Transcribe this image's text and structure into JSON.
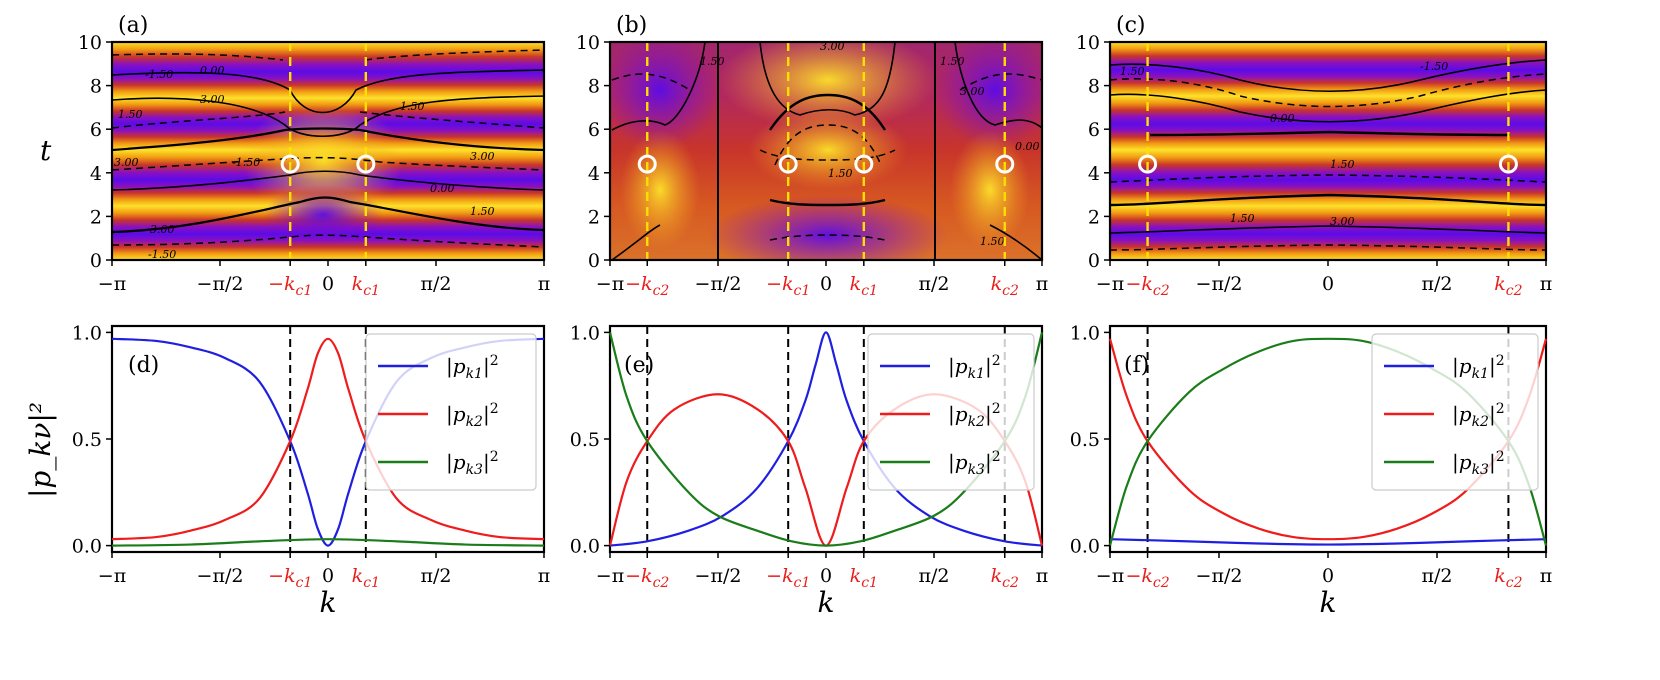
{
  "chart_data": {
    "type": "line",
    "panels_top": [
      {
        "label": "(a)",
        "type": "heatmap",
        "ylabel": "t",
        "xlim": [
          -3.1416,
          3.1416
        ],
        "ylim": [
          0,
          10
        ],
        "yticks": [
          "0",
          "2",
          "4",
          "6",
          "8",
          "10"
        ],
        "xtick_labels": [
          {
            "x": -3.1416,
            "text": "−π",
            "red": false
          },
          {
            "x": -1.5708,
            "text": "−π/2",
            "red": false
          },
          {
            "x": -0.55,
            "text": "−k_c1",
            "red": true
          },
          {
            "x": 0,
            "text": "0",
            "red": false
          },
          {
            "x": 0.55,
            "text": "k_c1",
            "red": true
          },
          {
            "x": 1.5708,
            "text": "π/2",
            "red": false
          },
          {
            "x": 3.1416,
            "text": "π",
            "red": false
          }
        ],
        "critical_k": [
          -0.55,
          0.55
        ],
        "critical_t": 4.4,
        "contour_labels": [
          "-1.50",
          "0.00",
          "1.50",
          "3.00"
        ]
      },
      {
        "label": "(b)",
        "type": "heatmap",
        "xlim": [
          -3.1416,
          3.1416
        ],
        "ylim": [
          0,
          10
        ],
        "yticks": [
          "0",
          "2",
          "4",
          "6",
          "8",
          "10"
        ],
        "xtick_labels": [
          {
            "x": -3.1416,
            "text": "−π",
            "red": false
          },
          {
            "x": -2.6,
            "text": "−k_c2",
            "red": true
          },
          {
            "x": -1.5708,
            "text": "−π/2",
            "red": false
          },
          {
            "x": -0.55,
            "text": "−k_c1",
            "red": true
          },
          {
            "x": 0,
            "text": "0",
            "red": false
          },
          {
            "x": 0.55,
            "text": "k_c1",
            "red": true
          },
          {
            "x": 1.5708,
            "text": "π/2",
            "red": false
          },
          {
            "x": 2.6,
            "text": "k_c2",
            "red": true
          },
          {
            "x": 3.1416,
            "text": "π",
            "red": false
          }
        ],
        "critical_k": [
          -2.6,
          -0.55,
          0.55,
          2.6
        ],
        "critical_t": 4.4,
        "contour_labels": [
          "1.50",
          "3.00",
          "0.00"
        ]
      },
      {
        "label": "(c)",
        "type": "heatmap",
        "xlim": [
          -3.1416,
          3.1416
        ],
        "ylim": [
          0,
          10
        ],
        "yticks": [
          "0",
          "2",
          "4",
          "6",
          "8",
          "10"
        ],
        "xtick_labels": [
          {
            "x": -3.1416,
            "text": "−π",
            "red": false
          },
          {
            "x": -2.6,
            "text": "−k_c2",
            "red": true
          },
          {
            "x": -1.5708,
            "text": "−π/2",
            "red": false
          },
          {
            "x": 0,
            "text": "0",
            "red": false
          },
          {
            "x": 1.5708,
            "text": "π/2",
            "red": false
          },
          {
            "x": 2.6,
            "text": "k_c2",
            "red": true
          },
          {
            "x": 3.1416,
            "text": "π",
            "red": false
          }
        ],
        "critical_k": [
          -2.6,
          2.6
        ],
        "critical_t": 4.4,
        "contour_labels": [
          "1.50",
          "-1.50",
          "0.00",
          "3.00"
        ]
      }
    ],
    "panels_bottom": [
      {
        "label": "(d)",
        "ylabel": "|p_kν|²",
        "xlabel": "k",
        "xlim": [
          -3.1416,
          3.1416
        ],
        "ylim": [
          -0.03,
          1.03
        ],
        "yticks": [
          "0.0",
          "0.5",
          "1.0"
        ],
        "critical_k": [
          -0.55,
          0.55
        ],
        "xtick_labels": [
          {
            "x": -3.1416,
            "text": "−π",
            "red": false
          },
          {
            "x": -1.5708,
            "text": "−π/2",
            "red": false
          },
          {
            "x": -0.55,
            "text": "−k_c1",
            "red": true
          },
          {
            "x": 0,
            "text": "0",
            "red": false
          },
          {
            "x": 0.55,
            "text": "k_c1",
            "red": true
          },
          {
            "x": 1.5708,
            "text": "π/2",
            "red": false
          },
          {
            "x": 3.1416,
            "text": "π",
            "red": false
          }
        ],
        "series": [
          {
            "name": "|p_k1|²",
            "color": "#1f1fe0",
            "x": [
              -3.1416,
              -2.5,
              -2.0,
              -1.5,
              -1.0,
              -0.55,
              -0.3,
              -0.15,
              0,
              0.15,
              0.3,
              0.55,
              1.0,
              1.5,
              2.0,
              2.5,
              3.1416
            ],
            "y": [
              0.97,
              0.96,
              0.93,
              0.88,
              0.77,
              0.49,
              0.25,
              0.08,
              0.0,
              0.08,
              0.25,
              0.49,
              0.77,
              0.88,
              0.93,
              0.96,
              0.97
            ]
          },
          {
            "name": "|p_k2|²",
            "color": "#ee1c1c",
            "x": [
              -3.1416,
              -2.5,
              -2.0,
              -1.5,
              -1.0,
              -0.55,
              -0.3,
              -0.15,
              0,
              0.15,
              0.3,
              0.55,
              1.0,
              1.5,
              2.0,
              2.5,
              3.1416
            ],
            "y": [
              0.03,
              0.04,
              0.07,
              0.12,
              0.22,
              0.49,
              0.73,
              0.9,
              0.97,
              0.9,
              0.73,
              0.49,
              0.22,
              0.12,
              0.07,
              0.04,
              0.03
            ]
          },
          {
            "name": "|p_k3|²",
            "color": "#1a7d1a",
            "x": [
              -3.1416,
              -2.0,
              -1.0,
              0,
              1.0,
              2.0,
              3.1416
            ],
            "y": [
              0.0,
              0.005,
              0.02,
              0.03,
              0.02,
              0.005,
              0.0
            ]
          }
        ]
      },
      {
        "label": "(e)",
        "xlabel": "k",
        "xlim": [
          -3.1416,
          3.1416
        ],
        "ylim": [
          -0.03,
          1.03
        ],
        "yticks": [
          "0.0",
          "0.5",
          "1.0"
        ],
        "critical_k": [
          -2.6,
          -0.55,
          0.55,
          2.6
        ],
        "xtick_labels": [
          {
            "x": -3.1416,
            "text": "−π",
            "red": false
          },
          {
            "x": -2.6,
            "text": "−k_c2",
            "red": true
          },
          {
            "x": -1.5708,
            "text": "−π/2",
            "red": false
          },
          {
            "x": -0.55,
            "text": "−k_c1",
            "red": true
          },
          {
            "x": 0,
            "text": "0",
            "red": false
          },
          {
            "x": 0.55,
            "text": "k_c1",
            "red": true
          },
          {
            "x": 1.5708,
            "text": "π/2",
            "red": false
          },
          {
            "x": 2.6,
            "text": "k_c2",
            "red": true
          },
          {
            "x": 3.1416,
            "text": "π",
            "red": false
          }
        ],
        "series": [
          {
            "name": "|p_k1|²",
            "color": "#1f1fe0",
            "x": [
              -3.1416,
              -2.6,
              -2.0,
              -1.5,
              -1.0,
              -0.55,
              -0.3,
              -0.15,
              0,
              0.15,
              0.3,
              0.55,
              1.0,
              1.5,
              2.0,
              2.6,
              3.1416
            ],
            "y": [
              0.0,
              0.02,
              0.07,
              0.14,
              0.27,
              0.49,
              0.68,
              0.85,
              1.0,
              0.85,
              0.68,
              0.49,
              0.27,
              0.14,
              0.07,
              0.02,
              0.0
            ]
          },
          {
            "name": "|p_k2|²",
            "color": "#ee1c1c",
            "x": [
              -3.1416,
              -2.9,
              -2.6,
              -2.2,
              -1.5708,
              -1.0,
              -0.55,
              -0.3,
              0,
              0.3,
              0.55,
              1.0,
              1.5708,
              2.2,
              2.6,
              2.9,
              3.1416
            ],
            "y": [
              0.0,
              0.3,
              0.49,
              0.64,
              0.71,
              0.64,
              0.49,
              0.27,
              0.0,
              0.27,
              0.49,
              0.64,
              0.71,
              0.64,
              0.49,
              0.3,
              0.0
            ]
          },
          {
            "name": "|p_k3|²",
            "color": "#1a7d1a",
            "x": [
              -3.1416,
              -2.9,
              -2.6,
              -2.0,
              -1.5708,
              -1.0,
              -0.5,
              0,
              0.5,
              1.0,
              1.5708,
              2.0,
              2.6,
              2.9,
              3.1416
            ],
            "y": [
              1.0,
              0.7,
              0.49,
              0.25,
              0.14,
              0.07,
              0.02,
              0.0,
              0.02,
              0.07,
              0.14,
              0.25,
              0.49,
              0.7,
              1.0
            ]
          }
        ]
      },
      {
        "label": "(f)",
        "xlabel": "k",
        "xlim": [
          -3.1416,
          3.1416
        ],
        "ylim": [
          -0.03,
          1.03
        ],
        "yticks": [
          "0.0",
          "0.5",
          "1.0"
        ],
        "critical_k": [
          -2.6,
          2.6
        ],
        "xtick_labels": [
          {
            "x": -3.1416,
            "text": "−π",
            "red": false
          },
          {
            "x": -2.6,
            "text": "−k_c2",
            "red": true
          },
          {
            "x": -1.5708,
            "text": "−π/2",
            "red": false
          },
          {
            "x": 0,
            "text": "0",
            "red": false
          },
          {
            "x": 1.5708,
            "text": "π/2",
            "red": false
          },
          {
            "x": 2.6,
            "text": "k_c2",
            "red": true
          },
          {
            "x": 3.1416,
            "text": "π",
            "red": false
          }
        ],
        "series": [
          {
            "name": "|p_k1|²",
            "color": "#1f1fe0",
            "x": [
              -3.1416,
              -2.0,
              -1.0,
              0,
              1.0,
              2.0,
              3.1416
            ],
            "y": [
              0.03,
              0.02,
              0.01,
              0.005,
              0.01,
              0.02,
              0.03
            ]
          },
          {
            "name": "|p_k2|²",
            "color": "#ee1c1c",
            "x": [
              -3.1416,
              -2.9,
              -2.6,
              -2.0,
              -1.5,
              -1.0,
              -0.5,
              0,
              0.5,
              1.0,
              1.5,
              2.0,
              2.6,
              2.9,
              3.1416
            ],
            "y": [
              0.97,
              0.7,
              0.49,
              0.26,
              0.15,
              0.08,
              0.04,
              0.03,
              0.04,
              0.08,
              0.15,
              0.26,
              0.49,
              0.7,
              0.97
            ]
          },
          {
            "name": "|p_k3|²",
            "color": "#1a7d1a",
            "x": [
              -3.1416,
              -2.9,
              -2.6,
              -2.0,
              -1.5,
              -1.0,
              -0.5,
              0,
              0.5,
              1.0,
              1.5,
              2.0,
              2.6,
              2.9,
              3.1416
            ],
            "y": [
              0.0,
              0.28,
              0.49,
              0.72,
              0.83,
              0.91,
              0.96,
              0.97,
              0.96,
              0.91,
              0.83,
              0.72,
              0.49,
              0.28,
              0.0
            ]
          }
        ]
      }
    ]
  },
  "colors": {
    "heat_purple": "#5b0be8",
    "heat_orange": "#e8650c",
    "heat_yellow": "#fde22a",
    "critical_line_top": "#ffe000",
    "critical_text": "#e8201c"
  }
}
